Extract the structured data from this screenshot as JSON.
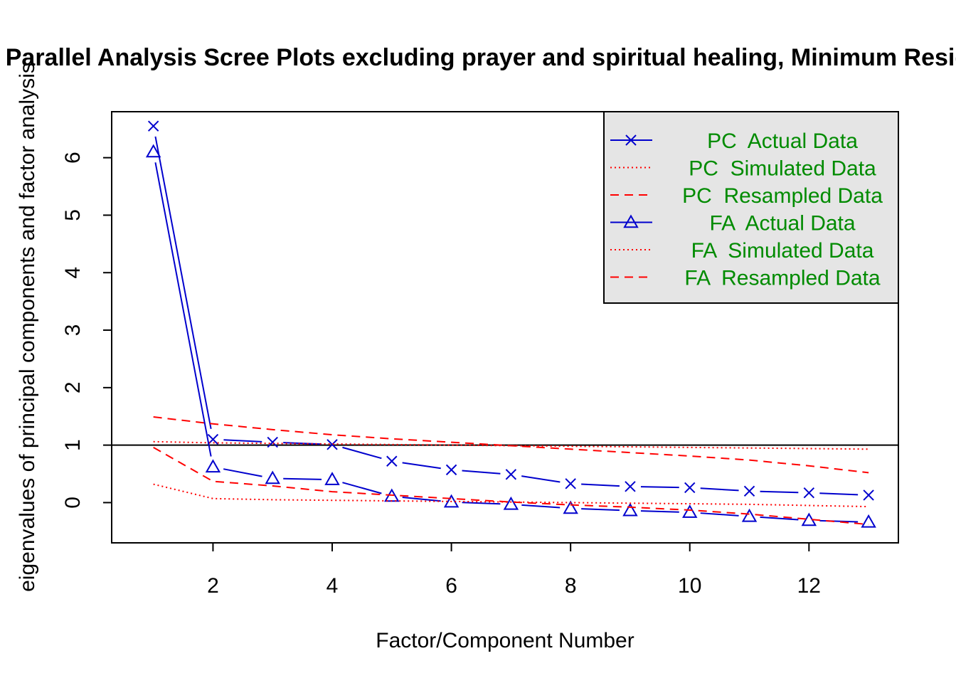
{
  "chart_data": {
    "type": "line",
    "title": "Parallel Analysis Scree Plots excluding prayer and spiritual healing, Minimum Residual",
    "xlabel": "Factor/Component Number",
    "ylabel": "eigenvalues of principal components and factor analysis",
    "xlim": [
      0.3,
      13.5
    ],
    "ylim": [
      -0.7,
      6.8
    ],
    "x_ticks": [
      2,
      4,
      6,
      8,
      10,
      12
    ],
    "y_ticks": [
      0,
      1,
      2,
      3,
      4,
      5,
      6
    ],
    "reference_line": 1,
    "legend_position": "top-right",
    "x": [
      1,
      2,
      3,
      4,
      5,
      6,
      7,
      8,
      9,
      10,
      11,
      12,
      13
    ],
    "series": [
      {
        "name": "PC  Actual Data",
        "color": "#0000cd",
        "line": "solid",
        "marker": "x",
        "values": [
          6.55,
          1.1,
          1.05,
          1.01,
          0.72,
          0.57,
          0.49,
          0.33,
          0.28,
          0.26,
          0.2,
          0.17,
          0.13
        ]
      },
      {
        "name": "PC  Simulated Data",
        "color": "#ff0000",
        "line": "dotted",
        "marker": "none",
        "values": [
          1.06,
          1.04,
          1.03,
          1.02,
          1.01,
          1.0,
          0.99,
          0.98,
          0.97,
          0.96,
          0.95,
          0.94,
          0.93
        ]
      },
      {
        "name": "PC  Resampled Data",
        "color": "#ff0000",
        "line": "dashed",
        "marker": "none",
        "values": [
          1.49,
          1.37,
          1.27,
          1.18,
          1.11,
          1.05,
          0.99,
          0.93,
          0.87,
          0.81,
          0.74,
          0.64,
          0.52
        ]
      },
      {
        "name": "FA  Actual Data",
        "color": "#0000cd",
        "line": "solid",
        "marker": "triangle",
        "values": [
          6.1,
          0.62,
          0.42,
          0.4,
          0.11,
          0.01,
          -0.03,
          -0.1,
          -0.14,
          -0.17,
          -0.24,
          -0.31,
          -0.34
        ]
      },
      {
        "name": "FA  Simulated Data",
        "color": "#ff0000",
        "line": "dotted",
        "marker": "none",
        "values": [
          0.32,
          0.07,
          0.05,
          0.04,
          0.03,
          0.02,
          0.01,
          0.0,
          -0.01,
          -0.02,
          -0.03,
          -0.05,
          -0.07
        ]
      },
      {
        "name": "FA  Resampled Data",
        "color": "#ff0000",
        "line": "dashed",
        "marker": "none",
        "values": [
          0.96,
          0.37,
          0.29,
          0.19,
          0.13,
          0.07,
          0.01,
          -0.04,
          -0.08,
          -0.13,
          -0.2,
          -0.29,
          -0.38
        ]
      }
    ],
    "legend_text_color": "#008b00",
    "legend_bg": "#e5e5e5"
  }
}
